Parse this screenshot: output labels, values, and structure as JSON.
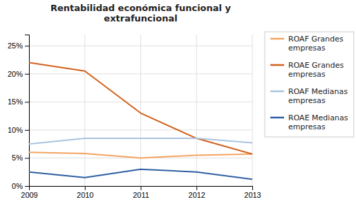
{
  "chart_data": {
    "type": "line",
    "title": "Rentabilidad económica funcional y\nextrafuncional",
    "x": [
      2009,
      2010,
      2011,
      2012,
      2013
    ],
    "xlim": [
      2009,
      2013
    ],
    "xticks": [
      2009,
      2010,
      2011,
      2012,
      2013
    ],
    "ylim": [
      0,
      0.27
    ],
    "yticks": [
      {
        "value": 0,
        "label": "0%"
      },
      {
        "value": 0.05,
        "label": "5%"
      },
      {
        "value": 0.1,
        "label": "10%"
      },
      {
        "value": 0.15,
        "label": "15%"
      },
      {
        "value": 0.2,
        "label": "20%"
      },
      {
        "value": 0.25,
        "label": "25%"
      }
    ],
    "grid": true,
    "legend": "right",
    "series": [
      {
        "name": "ROAF Grandes\nempresas",
        "color": "#F4A460",
        "values": [
          0.06,
          0.058,
          0.05,
          0.055,
          0.057
        ]
      },
      {
        "name": "ROAE Grandes\nempresas",
        "color": "#D2601A",
        "values": [
          0.22,
          0.205,
          0.13,
          0.085,
          0.057
        ]
      },
      {
        "name": "ROAF Medianas\nempresas",
        "color": "#A8C4E0",
        "values": [
          0.075,
          0.085,
          0.085,
          0.085,
          0.077
        ]
      },
      {
        "name": "ROAE Medianas\nempresas",
        "color": "#2E5FA3",
        "values": [
          0.025,
          0.015,
          0.03,
          0.025,
          0.012
        ]
      }
    ]
  }
}
